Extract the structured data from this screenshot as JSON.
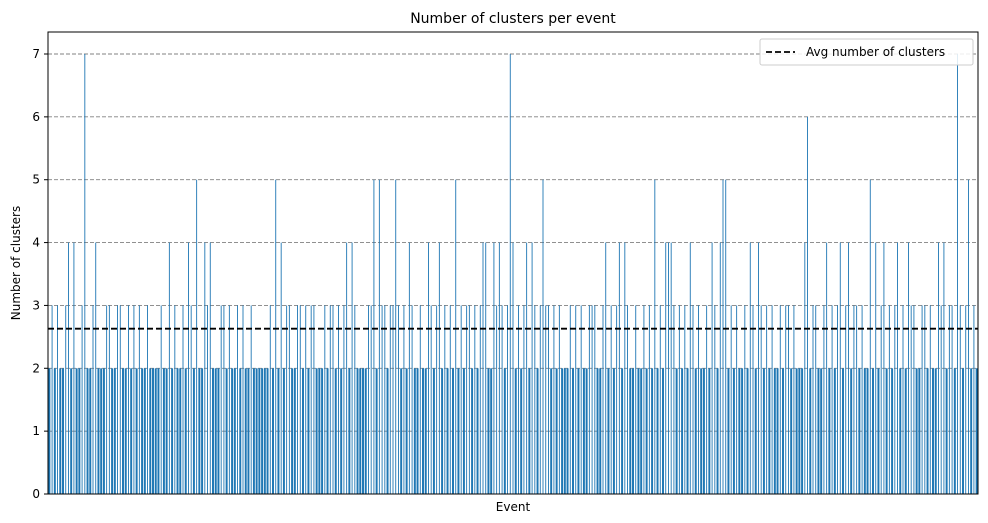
{
  "chart_data": {
    "type": "bar",
    "title": "Number of clusters per event",
    "xlabel": "Event",
    "ylabel": "Number of clusters",
    "ylim": [
      0,
      7.35
    ],
    "yticks": [
      "0",
      "1",
      "2",
      "3",
      "4",
      "5",
      "6",
      "7"
    ],
    "grid": "y, dashed",
    "legend_position": "top-right",
    "bar_color": "#1f77b4",
    "avg_line_color": "#000000",
    "avg_line": {
      "name": "Avg number of clusters",
      "value": 2.63
    },
    "values": [
      2,
      3,
      2,
      3,
      2,
      2,
      3,
      4,
      2,
      4,
      2,
      2,
      3,
      7,
      2,
      2,
      3,
      4,
      2,
      2,
      2,
      3,
      3,
      2,
      2,
      3,
      3,
      2,
      2,
      3,
      2,
      3,
      2,
      3,
      2,
      2,
      3,
      2,
      2,
      2,
      2,
      3,
      2,
      2,
      4,
      2,
      3,
      2,
      2,
      3,
      2,
      4,
      3,
      2,
      5,
      2,
      2,
      4,
      3,
      4,
      2,
      2,
      2,
      3,
      3,
      2,
      3,
      2,
      2,
      3,
      2,
      3,
      2,
      2,
      3,
      2,
      2,
      2,
      2,
      2,
      2,
      3,
      2,
      5,
      2,
      4,
      2,
      3,
      3,
      2,
      2,
      3,
      3,
      2,
      3,
      2,
      3,
      3,
      2,
      2,
      2,
      3,
      2,
      3,
      3,
      2,
      3,
      2,
      3,
      4,
      2,
      4,
      3,
      2,
      2,
      2,
      2,
      3,
      3,
      5,
      2,
      5,
      3,
      3,
      2,
      3,
      3,
      5,
      3,
      2,
      3,
      2,
      4,
      3,
      2,
      2,
      3,
      2,
      2,
      4,
      3,
      2,
      3,
      4,
      2,
      3,
      2,
      3,
      2,
      5,
      2,
      3,
      2,
      3,
      3,
      2,
      3,
      2,
      3,
      4,
      4,
      2,
      2,
      4,
      3,
      4,
      3,
      2,
      3,
      7,
      4,
      2,
      3,
      2,
      3,
      4,
      2,
      4,
      3,
      2,
      3,
      5,
      3,
      3,
      2,
      3,
      2,
      3,
      2,
      2,
      2,
      3,
      2,
      3,
      2,
      3,
      2,
      2,
      3,
      3,
      3,
      2,
      2,
      3,
      4,
      2,
      3,
      2,
      3,
      4,
      2,
      4,
      3,
      2,
      2,
      3,
      2,
      2,
      3,
      2,
      3,
      2,
      5,
      2,
      3,
      2,
      4,
      4,
      4,
      3,
      2,
      3,
      2,
      3,
      2,
      4,
      3,
      2,
      3,
      2,
      2,
      3,
      2,
      4,
      3,
      2,
      4,
      5,
      5,
      2,
      3,
      2,
      3,
      2,
      2,
      3,
      2,
      4,
      3,
      2,
      4,
      3,
      2,
      3,
      2,
      3,
      2,
      2,
      3,
      2,
      3,
      3,
      2,
      3,
      2,
      2,
      2,
      4,
      6,
      2,
      3,
      3,
      2,
      2,
      3,
      4,
      2,
      3,
      2,
      3,
      4,
      2,
      3,
      4,
      2,
      3,
      3,
      2,
      3,
      2,
      2,
      5,
      2,
      4,
      2,
      3,
      4,
      2,
      3,
      2,
      3,
      4,
      2,
      3,
      2,
      4,
      3,
      3,
      2,
      2,
      3,
      3,
      2,
      3,
      2,
      2,
      4,
      3,
      4,
      2,
      3,
      3,
      2,
      7,
      3,
      2,
      3,
      5,
      2,
      3,
      2
    ]
  }
}
